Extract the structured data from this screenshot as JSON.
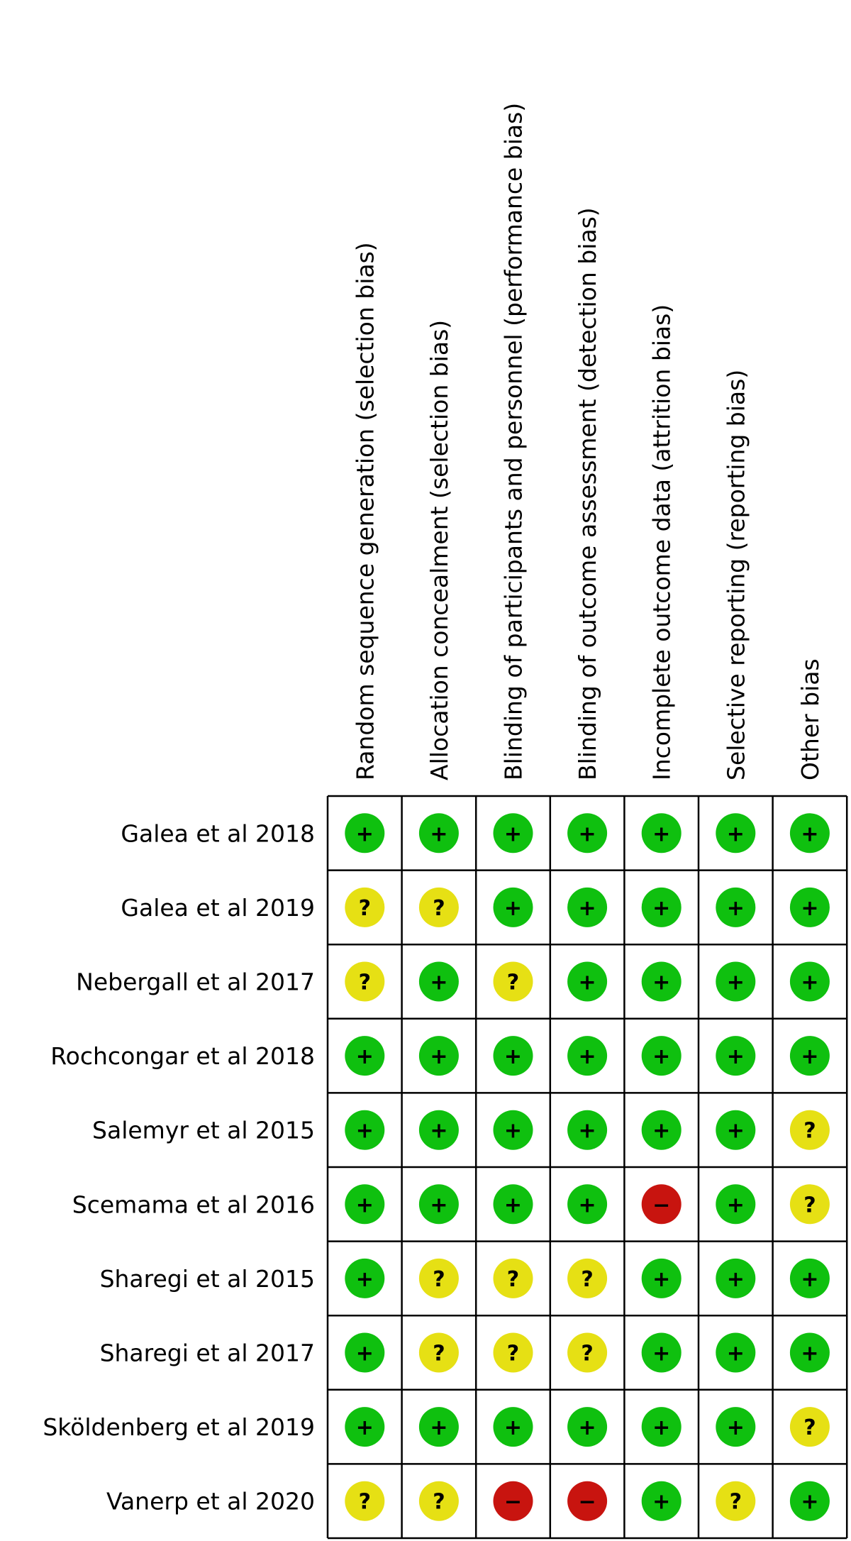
{
  "chart_data": {
    "type": "table",
    "columns": [
      "Random sequence generation (selection bias)",
      "Allocation concealment (selection bias)",
      "Blinding of participants and personnel (performance bias)",
      "Blinding of outcome assessment (detection bias)",
      "Incomplete outcome data (attrition bias)",
      "Selective reporting (reporting bias)",
      "Other bias"
    ],
    "rows": [
      "Galea et al 2018",
      "Galea et al 2019",
      "Nebergall et al 2017",
      "Rochcongar et al 2018",
      "Salemyr et al 2015",
      "Scemama et al 2016",
      "Sharegi et al 2015",
      "Sharegi et al 2017",
      "Sköldenberg et al 2019",
      "Vanerp et al 2020"
    ],
    "values": [
      [
        "low",
        "low",
        "low",
        "low",
        "low",
        "low",
        "low"
      ],
      [
        "unclear",
        "unclear",
        "low",
        "low",
        "low",
        "low",
        "low"
      ],
      [
        "unclear",
        "low",
        "unclear",
        "low",
        "low",
        "low",
        "low"
      ],
      [
        "low",
        "low",
        "low",
        "low",
        "low",
        "low",
        "low"
      ],
      [
        "low",
        "low",
        "low",
        "low",
        "low",
        "low",
        "unclear"
      ],
      [
        "low",
        "low",
        "low",
        "low",
        "high",
        "low",
        "unclear"
      ],
      [
        "low",
        "unclear",
        "unclear",
        "unclear",
        "low",
        "low",
        "low"
      ],
      [
        "low",
        "unclear",
        "unclear",
        "unclear",
        "low",
        "low",
        "low"
      ],
      [
        "low",
        "low",
        "low",
        "low",
        "low",
        "low",
        "unclear"
      ],
      [
        "unclear",
        "unclear",
        "high",
        "high",
        "low",
        "unclear",
        "low"
      ]
    ],
    "symbols": {
      "low": "+",
      "unclear": "?",
      "high": "−"
    },
    "colors": {
      "low": "#0FC00F",
      "unclear": "#E6E014",
      "high": "#C8140F"
    }
  }
}
